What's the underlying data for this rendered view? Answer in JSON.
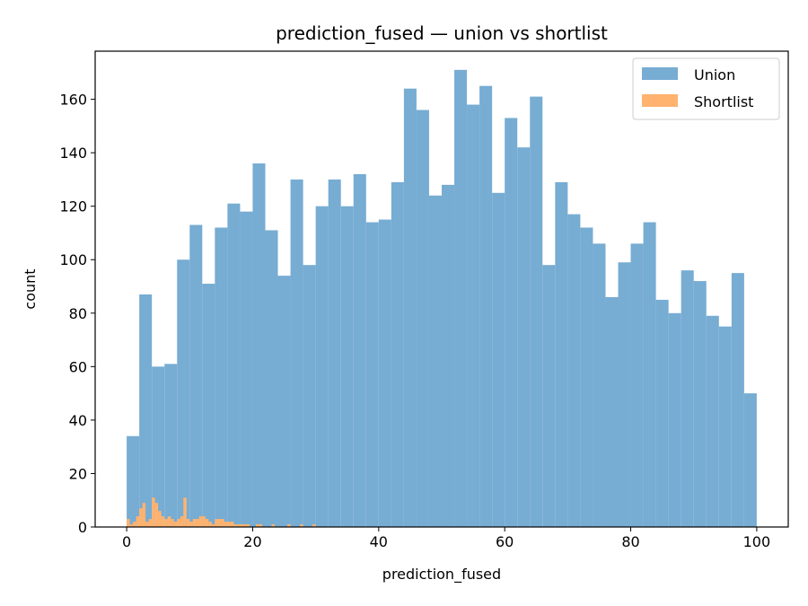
{
  "chart_data": {
    "type": "bar",
    "title": "prediction_fused — union vs shortlist",
    "xlabel": "prediction_fused",
    "ylabel": "count",
    "xlim": [
      -5,
      105
    ],
    "ylim": [
      0,
      178
    ],
    "xticks": [
      0,
      20,
      40,
      60,
      80,
      100
    ],
    "yticks": [
      0,
      20,
      40,
      60,
      80,
      100,
      120,
      140,
      160
    ],
    "grid": false,
    "legend_position": "top-right",
    "series": [
      {
        "name": "Union",
        "color": "#77acd3",
        "bin_start": 0,
        "bin_width": 2,
        "values": [
          34,
          87,
          60,
          61,
          100,
          113,
          91,
          112,
          121,
          118,
          136,
          111,
          94,
          130,
          98,
          120,
          130,
          120,
          132,
          114,
          115,
          129,
          164,
          156,
          124,
          128,
          171,
          158,
          165,
          125,
          153,
          142,
          161,
          98,
          129,
          117,
          112,
          106,
          86,
          99,
          106,
          114,
          85,
          80,
          96,
          92,
          79,
          75,
          95,
          50
        ]
      },
      {
        "name": "Shortlist",
        "color": "#ffb36f",
        "bin_start": 0,
        "bin_width": 0.5,
        "values": [
          3,
          1,
          2,
          4,
          7,
          9,
          2,
          3,
          11,
          9,
          6,
          4,
          3,
          4,
          3,
          2,
          3,
          4,
          11,
          3,
          2,
          3,
          3,
          4,
          4,
          3,
          2,
          1,
          3,
          3,
          3,
          2,
          2,
          2,
          1,
          1,
          1,
          1,
          1,
          0,
          0,
          1,
          1,
          0,
          0,
          0,
          1,
          0,
          0,
          0,
          0,
          1,
          0,
          0,
          0,
          1,
          0,
          0,
          0,
          1
        ]
      }
    ]
  }
}
